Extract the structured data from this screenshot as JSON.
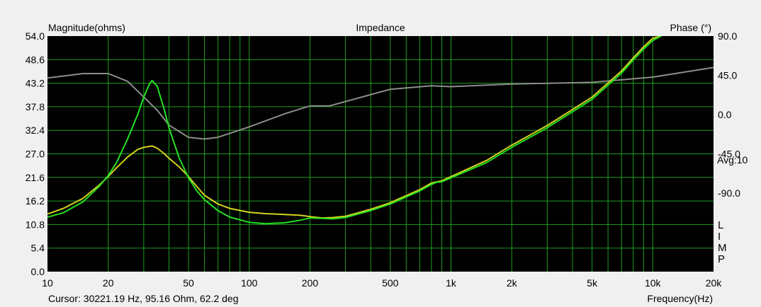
{
  "chart_data": {
    "type": "line",
    "title": "Impedance",
    "ylabel_left": "Magnitude(ohms)",
    "ylabel_right": "Phase (°)",
    "xlabel": "Frequency(Hz)",
    "x_scale": "log",
    "xlim": [
      10,
      20000
    ],
    "ylim_left": [
      0,
      54
    ],
    "ylim_right": [
      -180,
      90
    ],
    "x_ticks": [
      10,
      20,
      50,
      100,
      200,
      500,
      1000,
      2000,
      5000,
      10000,
      20000
    ],
    "x_tick_labels": [
      "10",
      "20",
      "50",
      "100",
      "200",
      "500",
      "1k",
      "2k",
      "5k",
      "10k",
      "20k"
    ],
    "y_left_ticks": [
      0.0,
      5.4,
      10.8,
      16.2,
      21.6,
      27.0,
      32.4,
      37.8,
      43.2,
      48.6,
      54.0
    ],
    "y_left_tick_labels": [
      "0.0",
      "5.4",
      "10.8",
      "16.2",
      "21.6",
      "27.0",
      "32.4",
      "37.8",
      "43.2",
      "48.6",
      "54.0"
    ],
    "y_right_ticks": [
      90,
      45,
      0,
      -45,
      -90
    ],
    "y_right_tick_labels": [
      "90.0",
      "45.0",
      "0.0",
      "-45.0",
      "-90.0"
    ],
    "avg_label": "Avg:10",
    "side_letters": [
      "L",
      "I",
      "M",
      "P"
    ],
    "cursor_text": "Cursor: 30221.19 Hz, 95.16 Ohm, 62.2 deg",
    "grid": true,
    "background_color": "#000000",
    "grid_color": "#1f9e1f",
    "series": [
      {
        "color": "#22e022",
        "axis": "left",
        "x": [
          10,
          12,
          15,
          18,
          20,
          22,
          25,
          28,
          30,
          32,
          33,
          35,
          38,
          40,
          45,
          50,
          55,
          60,
          70,
          80,
          100,
          120,
          150,
          180,
          200,
          230,
          260,
          300,
          400,
          500,
          700,
          800,
          850,
          900,
          1000,
          1500,
          2000,
          3000,
          5000,
          7000,
          8000,
          9000,
          10000,
          11000
        ],
        "y": [
          12.5,
          13.5,
          16.0,
          19.5,
          22.0,
          25.0,
          30.5,
          36.0,
          40.0,
          43.0,
          43.8,
          42.5,
          37.0,
          33.0,
          26.0,
          21.5,
          18.5,
          16.5,
          14.0,
          12.5,
          11.3,
          11.0,
          11.2,
          11.8,
          12.3,
          12.2,
          12.1,
          12.4,
          14.0,
          15.5,
          18.5,
          20.0,
          20.5,
          20.6,
          21.5,
          25.0,
          28.5,
          33.0,
          39.5,
          45.5,
          48.5,
          51.0,
          53.0,
          54.0
        ]
      },
      {
        "color": "#d4d41e",
        "axis": "left",
        "x": [
          10,
          12,
          15,
          18,
          20,
          22,
          25,
          28,
          30,
          33,
          35,
          38,
          40,
          45,
          50,
          55,
          60,
          70,
          80,
          100,
          120,
          150,
          180,
          200,
          230,
          260,
          300,
          400,
          500,
          700,
          800,
          850,
          900,
          1000,
          1500,
          2000,
          3000,
          5000,
          7000,
          8000,
          9000,
          10000,
          11000
        ],
        "y": [
          13.2,
          14.5,
          16.8,
          19.8,
          21.8,
          23.8,
          26.3,
          28.0,
          28.5,
          28.8,
          28.3,
          27.0,
          26.0,
          24.0,
          21.8,
          19.5,
          17.5,
          15.5,
          14.5,
          13.6,
          13.3,
          13.1,
          12.9,
          12.6,
          12.3,
          12.4,
          12.7,
          14.3,
          15.8,
          18.8,
          20.3,
          20.6,
          20.8,
          21.8,
          25.5,
          29.0,
          33.5,
          40.0,
          46.0,
          49.0,
          51.5,
          53.5,
          54.0
        ]
      },
      {
        "color": "#8c8c8c",
        "axis": "right",
        "x": [
          10,
          15,
          20,
          25,
          30,
          35,
          40,
          50,
          60,
          70,
          100,
          150,
          200,
          250,
          300,
          500,
          800,
          1000,
          2000,
          5000,
          10000,
          20000
        ],
        "y": [
          42,
          47,
          47,
          38,
          20,
          5,
          -12,
          -26,
          -28,
          -26,
          -14,
          1,
          10,
          10,
          15,
          29,
          33,
          32,
          35,
          37,
          43,
          54
        ]
      }
    ]
  }
}
